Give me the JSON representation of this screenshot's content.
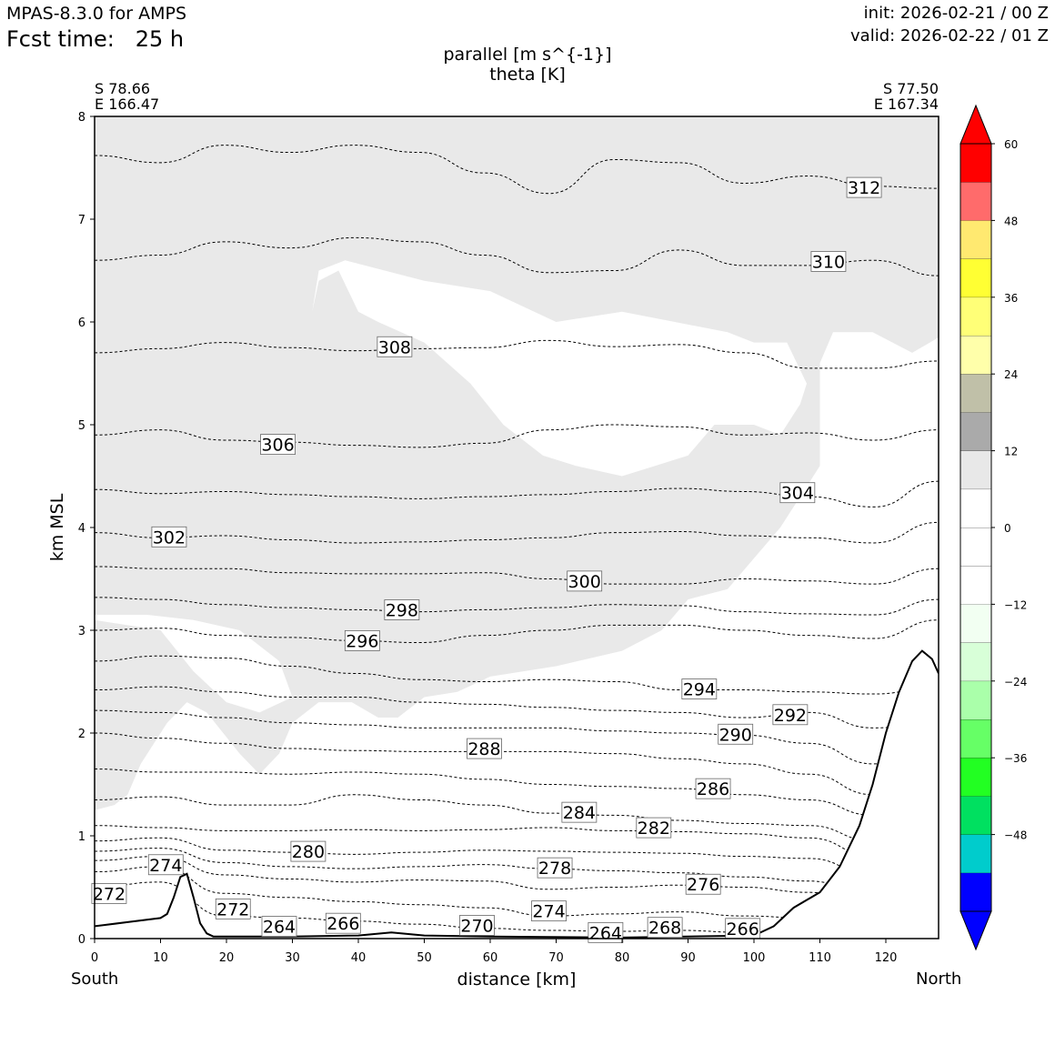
{
  "header": {
    "model": "MPAS-8.3.0 for AMPS",
    "fcst_label": "Fcst time:",
    "fcst_value": "25 h",
    "init": "init: 2026-02-21 / 00 Z",
    "valid": "valid: 2026-02-22 / 01 Z"
  },
  "title": {
    "line1": "parallel [m s^{-1}]",
    "line2": "theta [K]"
  },
  "corners": {
    "left_lat": "S 78.66",
    "left_lon": "E 166.47",
    "right_lat": "S 77.50",
    "right_lon": "E 167.34"
  },
  "ends": {
    "left": "South",
    "right": "North"
  },
  "colors": {
    "background": "#ffffff",
    "shade": "#e9e9e9",
    "terrain": "#000000",
    "contour": "#000000"
  },
  "chart_data": {
    "type": "cross-section",
    "xlabel": "distance [km]",
    "ylabel": "km MSL",
    "xlim": [
      0,
      128
    ],
    "ylim": [
      0,
      8
    ],
    "xticks": [
      0,
      10,
      20,
      30,
      40,
      50,
      60,
      70,
      80,
      90,
      100,
      110,
      120
    ],
    "yticks": [
      0,
      1,
      2,
      3,
      4,
      5,
      6,
      7,
      8
    ],
    "colorbar": {
      "levels": [
        -60,
        -54,
        -48,
        -42,
        -36,
        -30,
        -24,
        -18,
        -12,
        -6,
        0,
        6,
        12,
        18,
        24,
        30,
        36,
        42,
        48,
        54,
        60
      ],
      "colors": [
        "#0000ff",
        "#00cccc",
        "#00e060",
        "#22ff22",
        "#66ff66",
        "#aaffaa",
        "#d8ffd8",
        "#f2fff2",
        "#ffffff",
        "#ffffff",
        "#ffffff",
        "#e8e8e8",
        "#aaaaaa",
        "#c0c0a8",
        "#ffffaa",
        "#ffff77",
        "#ffff33",
        "#ffe970",
        "#ff6b6b",
        "#ff0000"
      ],
      "under": "#0000ff",
      "over": "#ff0000",
      "tick_labels": [
        "60",
        "48",
        "36",
        "24",
        "12",
        "0",
        "−12",
        "−24",
        "−36",
        "−48"
      ]
    },
    "terrain_km": [
      [
        0,
        0.12
      ],
      [
        5,
        0.16
      ],
      [
        10,
        0.2
      ],
      [
        11,
        0.24
      ],
      [
        12,
        0.4
      ],
      [
        13,
        0.6
      ],
      [
        14,
        0.63
      ],
      [
        15,
        0.4
      ],
      [
        16,
        0.15
      ],
      [
        17,
        0.05
      ],
      [
        18,
        0.02
      ],
      [
        30,
        0.02
      ],
      [
        40,
        0.03
      ],
      [
        45,
        0.06
      ],
      [
        50,
        0.03
      ],
      [
        60,
        0.02
      ],
      [
        80,
        0.01
      ],
      [
        100,
        0.03
      ],
      [
        103,
        0.12
      ],
      [
        106,
        0.3
      ],
      [
        110,
        0.45
      ],
      [
        113,
        0.7
      ],
      [
        116,
        1.1
      ],
      [
        118,
        1.5
      ],
      [
        120,
        2.0
      ],
      [
        122,
        2.4
      ],
      [
        124,
        2.7
      ],
      [
        125.5,
        2.8
      ],
      [
        127,
        2.72
      ],
      [
        128,
        2.58
      ]
    ],
    "shaded_region": {
      "level_range": [
        6,
        12
      ],
      "upper_area": [
        [
          0,
          8
        ],
        [
          128,
          8
        ],
        [
          128,
          5.85
        ],
        [
          124,
          5.7
        ],
        [
          118,
          5.9
        ],
        [
          112,
          5.9
        ],
        [
          110,
          5.6
        ],
        [
          110,
          4.6
        ],
        [
          107,
          4.3
        ],
        [
          104,
          4.0
        ],
        [
          100,
          3.7
        ],
        [
          96,
          3.4
        ],
        [
          90,
          3.3
        ],
        [
          86,
          3.0
        ],
        [
          80,
          2.8
        ],
        [
          70,
          2.65
        ],
        [
          60,
          2.55
        ],
        [
          55,
          2.4
        ],
        [
          50,
          2.35
        ],
        [
          48,
          2.25
        ],
        [
          46,
          2.15
        ],
        [
          43,
          2.15
        ],
        [
          39,
          2.3
        ],
        [
          34,
          2.3
        ],
        [
          30,
          2.1
        ],
        [
          28,
          1.8
        ],
        [
          25,
          1.6
        ],
        [
          22,
          1.8
        ],
        [
          17,
          2.2
        ],
        [
          14,
          2.3
        ],
        [
          11,
          2.1
        ],
        [
          7,
          1.7
        ],
        [
          5,
          1.4
        ],
        [
          3,
          1.3
        ],
        [
          0,
          1.25
        ]
      ],
      "holes": [
        [
          [
            33,
            6.1
          ],
          [
            34,
            6.4
          ],
          [
            37,
            6.5
          ],
          [
            40,
            6.1
          ],
          [
            43,
            6.0
          ],
          [
            50,
            5.8
          ],
          [
            57,
            5.4
          ],
          [
            62,
            5.0
          ],
          [
            68,
            4.7
          ],
          [
            73,
            4.6
          ],
          [
            80,
            4.5
          ],
          [
            85,
            4.6
          ],
          [
            90,
            4.7
          ],
          [
            94,
            5.0
          ],
          [
            100,
            5.0
          ],
          [
            104,
            4.9
          ],
          [
            107,
            5.2
          ],
          [
            108,
            5.4
          ],
          [
            105,
            5.8
          ],
          [
            100,
            5.8
          ],
          [
            96,
            5.9
          ],
          [
            88,
            6.0
          ],
          [
            80,
            6.1
          ],
          [
            70,
            6.0
          ],
          [
            60,
            6.3
          ],
          [
            50,
            6.4
          ],
          [
            44,
            6.5
          ],
          [
            38,
            6.6
          ],
          [
            34,
            6.5
          ]
        ],
        [
          [
            0,
            3.1
          ],
          [
            5,
            3.05
          ],
          [
            10,
            3.0
          ],
          [
            15,
            2.6
          ],
          [
            20,
            2.3
          ],
          [
            25,
            2.2
          ],
          [
            30,
            2.35
          ],
          [
            28,
            2.7
          ],
          [
            22,
            3.0
          ],
          [
            15,
            3.1
          ],
          [
            8,
            3.15
          ],
          [
            0,
            3.15
          ]
        ]
      ]
    },
    "theta_contours": [
      {
        "value": 312,
        "y": [
          7.62,
          7.55,
          7.72,
          7.65,
          7.72,
          7.65,
          7.45,
          7.25,
          7.58,
          7.55,
          7.35,
          7.42,
          7.32,
          7.3
        ],
        "label_pos": [
          117,
          7.3
        ]
      },
      {
        "value": 310,
        "y": [
          6.6,
          6.65,
          6.78,
          6.72,
          6.82,
          6.78,
          6.65,
          6.48,
          6.5,
          6.7,
          6.55,
          6.55,
          6.6,
          6.45
        ],
        "label_pos": [
          111,
          6.58
        ]
      },
      {
        "value": 308,
        "y": [
          5.7,
          5.74,
          5.8,
          5.75,
          5.72,
          5.74,
          5.75,
          5.82,
          5.76,
          5.78,
          5.7,
          5.55,
          5.55,
          5.62
        ],
        "label_pos": [
          45,
          5.75
        ]
      },
      {
        "value": 306,
        "y": [
          4.9,
          4.95,
          4.85,
          4.83,
          4.8,
          4.78,
          4.82,
          4.95,
          5.0,
          4.98,
          4.9,
          4.92,
          4.85,
          4.95
        ],
        "label_pos": [
          28,
          4.8
        ]
      },
      {
        "value": 304,
        "y": [
          4.37,
          4.33,
          4.35,
          4.32,
          4.3,
          4.28,
          4.3,
          4.32,
          4.35,
          4.38,
          4.35,
          4.3,
          4.2,
          4.45
        ],
        "label_pos": [
          107,
          4.33
        ]
      },
      {
        "value": 302,
        "y": [
          3.95,
          3.9,
          3.92,
          3.88,
          3.85,
          3.86,
          3.88,
          3.9,
          3.95,
          3.96,
          3.92,
          3.9,
          3.85,
          4.05
        ],
        "label_pos": [
          11,
          3.9
        ]
      },
      {
        "value": 300,
        "y": [
          3.62,
          3.6,
          3.6,
          3.56,
          3.55,
          3.55,
          3.56,
          3.5,
          3.45,
          3.45,
          3.5,
          3.48,
          3.45,
          3.6
        ],
        "label_pos": [
          74,
          3.47
        ]
      },
      {
        "value": 298,
        "y": [
          3.32,
          3.3,
          3.25,
          3.22,
          3.2,
          3.18,
          3.2,
          3.22,
          3.25,
          3.24,
          3.18,
          3.16,
          3.15,
          3.3
        ],
        "label_pos": [
          47,
          3.18
        ]
      },
      {
        "value": 296,
        "y": [
          3.0,
          3.02,
          2.95,
          2.93,
          2.9,
          2.88,
          2.95,
          3.0,
          3.05,
          3.05,
          3.0,
          2.95,
          2.92,
          3.1
        ],
        "label_pos": [
          40,
          2.9
        ]
      },
      {
        "value": 294,
        "y": [
          2.7,
          2.75,
          2.73,
          2.65,
          2.58,
          2.52,
          2.5,
          2.52,
          2.5,
          2.42,
          2.42,
          2.4,
          2.38,
          2.45
        ],
        "label_pos": [
          92,
          2.42
        ]
      },
      {
        "value": 292,
        "y": [
          2.42,
          2.45,
          2.4,
          2.35,
          2.35,
          2.3,
          2.28,
          2.25,
          2.22,
          2.2,
          2.15,
          2.2,
          2.05,
          2.1
        ],
        "label_pos": [
          106,
          2.17
        ]
      },
      {
        "value": 290,
        "y": [
          2.22,
          2.2,
          2.15,
          2.1,
          2.08,
          2.05,
          2.05,
          2.05,
          2.02,
          2.0,
          1.98,
          1.9,
          1.7,
          1.6
        ],
        "label_pos": [
          97,
          2.0
        ]
      },
      {
        "value": 288,
        "y": [
          2.0,
          1.95,
          1.9,
          1.85,
          1.83,
          1.82,
          1.82,
          1.82,
          1.8,
          1.75,
          1.7,
          1.6,
          1.4,
          1.25
        ],
        "label_pos": [
          59,
          1.84
        ]
      },
      {
        "value": 286,
        "y": [
          1.65,
          1.62,
          1.62,
          1.6,
          1.62,
          1.6,
          1.55,
          1.5,
          1.48,
          1.46,
          1.4,
          1.35,
          1.2,
          1.05
        ],
        "label_pos": [
          94,
          1.45
        ]
      },
      {
        "value": 284,
        "y": [
          1.35,
          1.38,
          1.3,
          1.3,
          1.4,
          1.35,
          1.3,
          1.22,
          1.2,
          1.15,
          1.12,
          1.1,
          0.95,
          0.85
        ],
        "label_pos": [
          73,
          1.22
        ]
      },
      {
        "value": 282,
        "y": [
          1.1,
          1.08,
          1.05,
          1.05,
          1.06,
          1.05,
          1.06,
          1.08,
          1.05,
          1.04,
          1.02,
          0.98,
          0.8,
          0.7
        ],
        "label_pos": [
          85,
          1.05
        ]
      },
      {
        "value": 280,
        "y": [
          0.95,
          0.98,
          0.86,
          0.84,
          0.82,
          0.84,
          0.86,
          0.85,
          0.84,
          0.83,
          0.8,
          0.78,
          0.62,
          0.55
        ],
        "label_pos": [
          32,
          0.83
        ]
      },
      {
        "value": 278,
        "y": [
          0.85,
          0.88,
          0.74,
          0.7,
          0.68,
          0.7,
          0.72,
          0.68,
          0.66,
          0.64,
          0.6,
          0.56,
          0.42,
          0.38
        ],
        "label_pos": [
          70,
          0.68
        ]
      },
      {
        "value": 276,
        "y": [
          0.76,
          0.8,
          0.62,
          0.58,
          0.55,
          0.57,
          0.56,
          0.48,
          0.5,
          0.52,
          0.5,
          0.45,
          0.32,
          0.28
        ],
        "label_pos": [
          92,
          0.52
        ]
      },
      {
        "value": 274,
        "y": [
          0.65,
          0.7,
          0.44,
          0.4,
          0.36,
          0.33,
          0.3,
          0.22,
          0.24,
          0.26,
          0.22,
          0.2,
          0.15,
          0.12
        ],
        "label_pos": [
          68,
          0.25
        ]
      },
      {
        "value": 272,
        "y": [
          0.5,
          0.55,
          0.22,
          0.2,
          0.17,
          0.14,
          0.1,
          0.08,
          0.07,
          0.08,
          0.06,
          0.06,
          0.05,
          0.04
        ],
        "label_pos": [
          3,
          0.43
        ]
      }
    ],
    "contour_labels": [
      {
        "text": "312",
        "x": 116.7,
        "y": 7.3
      },
      {
        "text": "310",
        "x": 111.3,
        "y": 6.58
      },
      {
        "text": "308",
        "x": 45.5,
        "y": 5.75
      },
      {
        "text": "306",
        "x": 27.8,
        "y": 4.8
      },
      {
        "text": "304",
        "x": 106.6,
        "y": 4.33
      },
      {
        "text": "302",
        "x": 11.3,
        "y": 3.9
      },
      {
        "text": "300",
        "x": 74.3,
        "y": 3.47
      },
      {
        "text": "298",
        "x": 46.6,
        "y": 3.19
      },
      {
        "text": "296",
        "x": 40.6,
        "y": 2.89
      },
      {
        "text": "294",
        "x": 91.7,
        "y": 2.42
      },
      {
        "text": "292",
        "x": 105.5,
        "y": 2.17
      },
      {
        "text": "290",
        "x": 97.2,
        "y": 1.98
      },
      {
        "text": "288",
        "x": 59.1,
        "y": 1.84
      },
      {
        "text": "286",
        "x": 93.8,
        "y": 1.45
      },
      {
        "text": "284",
        "x": 73.5,
        "y": 1.22
      },
      {
        "text": "282",
        "x": 84.8,
        "y": 1.07
      },
      {
        "text": "280",
        "x": 32.4,
        "y": 0.84
      },
      {
        "text": "278",
        "x": 69.8,
        "y": 0.68
      },
      {
        "text": "276",
        "x": 92.3,
        "y": 0.52
      },
      {
        "text": "274",
        "x": 10.8,
        "y": 0.71
      },
      {
        "text": "274",
        "x": 68.9,
        "y": 0.26
      },
      {
        "text": "272",
        "x": 2.2,
        "y": 0.43
      },
      {
        "text": "272",
        "x": 21.0,
        "y": 0.28
      },
      {
        "text": "270",
        "x": 58.0,
        "y": 0.12
      },
      {
        "text": "268",
        "x": 86.5,
        "y": 0.1
      },
      {
        "text": "266",
        "x": 37.7,
        "y": 0.14
      },
      {
        "text": "266",
        "x": 98.3,
        "y": 0.09
      },
      {
        "text": "264",
        "x": 28.0,
        "y": 0.11
      },
      {
        "text": "264",
        "x": 77.5,
        "y": 0.05
      }
    ]
  }
}
